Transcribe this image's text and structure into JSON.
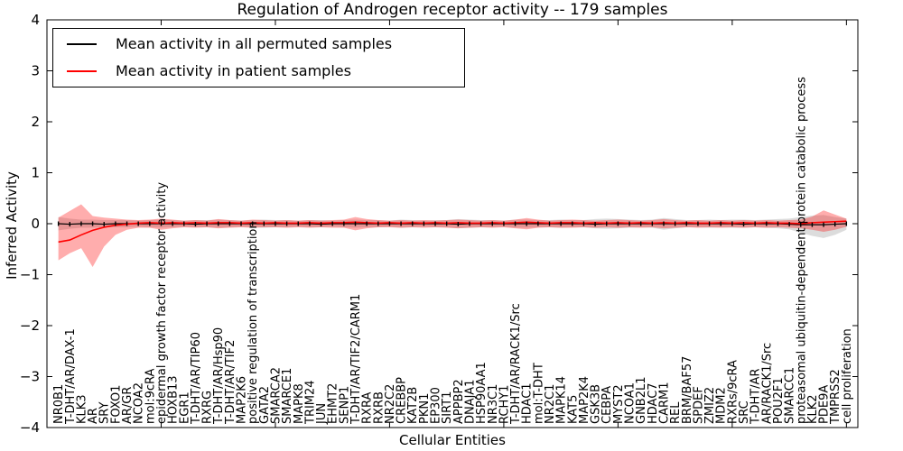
{
  "figure": {
    "title": "Regulation of Androgen receptor activity -- 179 samples",
    "xlabel": "Cellular Entities",
    "ylabel": "Inferred Activity",
    "legend": {
      "entries": [
        {
          "label": "Mean activity in all permuted samples",
          "color": "#000000"
        },
        {
          "label": "Mean activity in patient samples",
          "color": "#ff0000"
        }
      ]
    },
    "colors": {
      "permuted_line": "#000000",
      "patient_line": "#ff0000",
      "permuted_band": "rgba(128,128,128,0.28)",
      "patient_band": "rgba(255,0,0,0.32)",
      "axes": "#000000",
      "background": "#ffffff"
    }
  },
  "chart_data": {
    "type": "line",
    "title": "Regulation of Androgen receptor activity -- 179 samples",
    "xlabel": "Cellular Entities",
    "ylabel": "Inferred Activity",
    "ylim": [
      -4,
      4
    ],
    "yticks": [
      4,
      3,
      2,
      1,
      0,
      -1,
      -2,
      -3,
      -4
    ],
    "xtick_indices": [
      9,
      19,
      29,
      39,
      49,
      59,
      69
    ],
    "grid": false,
    "legend_position": "upper left",
    "categories": [
      "NR0B1",
      "T-DHT/AR/DAX-1",
      "KLK3",
      "AR",
      "SRY",
      "FOXO1",
      "AR/GR",
      "NCOA2",
      "mol:9cRA",
      "epidermal growth factor receptor activity",
      "HOXB13",
      "EGR1",
      "T-DHT/AR/TIP60",
      "RXRG",
      "T-DHT/AR/Hsp90",
      "T-DHT/AR/TIF2",
      "MAP2K6",
      "positive regulation of transcription",
      "GATA2",
      "SMARCA2",
      "SMARCE1",
      "MAPK8",
      "TRIM24",
      "JUN",
      "EHMT2",
      "SENP1",
      "T-DHT/AR/TIF2/CARM1",
      "RXRA",
      "RXRB",
      "NR2C2",
      "CREBBP",
      "KAT2B",
      "PKN1",
      "EP300",
      "SIRT1",
      "APPBP2",
      "DNAJA1",
      "HSP90AA1",
      "NR3C1",
      "RCHY1",
      "T-DHT/AR/RACK1/Src",
      "HDAC1",
      "mol:T-DHT",
      "NR2C1",
      "MAPK14",
      "KAT5",
      "MAP2K4",
      "GSK3B",
      "CEBPA",
      "MYST2",
      "NCOA1",
      "GNB2L1",
      "HDAC7",
      "CARM1",
      "REL",
      "BRM/BAF57",
      "SPDEF",
      "ZMIZ2",
      "MDM2",
      "RXRs/9cRA",
      "SRC",
      "T-DHT/AR",
      "AR/RACK1/Src",
      "POU2F1",
      "SMARCC1",
      "proteasomal ubiquitin-dependent protein catabolic process",
      "KLK2",
      "PDE9A",
      "TMPRSS2",
      "cell proliferation"
    ],
    "series": [
      {
        "name": "Mean activity in all permuted samples",
        "color": "#000000",
        "band_color": "rgba(128,128,128,0.28)",
        "values": [
          0,
          -0.01,
          0,
          0,
          -0.01,
          0,
          0,
          0,
          0,
          0,
          0,
          0,
          -0.01,
          0,
          0,
          0,
          0,
          0,
          0,
          0,
          0,
          0,
          0,
          -0.01,
          0,
          0,
          0,
          0,
          0,
          0,
          0,
          0,
          0,
          0,
          0,
          -0.01,
          0,
          0,
          0,
          0,
          0,
          0,
          0,
          0,
          0,
          0,
          0,
          -0.01,
          0,
          0,
          0,
          0,
          0,
          0,
          0,
          0,
          0,
          0,
          0,
          0,
          -0.01,
          0,
          0,
          0,
          -0.01,
          -0.02,
          -0.02,
          -0.02,
          -0.01,
          0
        ],
        "band_hi": [
          0.13,
          0.1,
          0.08,
          0.08,
          0.07,
          0.07,
          0.07,
          0.06,
          0.07,
          0.08,
          0.07,
          0.06,
          0.07,
          0.07,
          0.08,
          0.07,
          0.06,
          0.07,
          0.08,
          0.07,
          0.07,
          0.06,
          0.07,
          0.07,
          0.06,
          0.07,
          0.08,
          0.07,
          0.07,
          0.06,
          0.08,
          0.07,
          0.06,
          0.07,
          0.07,
          0.09,
          0.08,
          0.07,
          0.07,
          0.06,
          0.08,
          0.08,
          0.07,
          0.07,
          0.08,
          0.07,
          0.07,
          0.09,
          0.1,
          0.09,
          0.08,
          0.07,
          0.08,
          0.11,
          0.09,
          0.07,
          0.07,
          0.08,
          0.07,
          0.08,
          0.08,
          0.07,
          0.08,
          0.09,
          0.1,
          0.13,
          0.16,
          0.17,
          0.13,
          0.1
        ],
        "band_lo": [
          -0.13,
          -0.1,
          -0.08,
          -0.08,
          -0.07,
          -0.07,
          -0.07,
          -0.06,
          -0.07,
          -0.08,
          -0.07,
          -0.06,
          -0.07,
          -0.07,
          -0.08,
          -0.07,
          -0.06,
          -0.07,
          -0.08,
          -0.07,
          -0.07,
          -0.06,
          -0.07,
          -0.07,
          -0.06,
          -0.07,
          -0.08,
          -0.07,
          -0.07,
          -0.06,
          -0.08,
          -0.07,
          -0.06,
          -0.07,
          -0.07,
          -0.09,
          -0.08,
          -0.07,
          -0.07,
          -0.06,
          -0.08,
          -0.08,
          -0.07,
          -0.07,
          -0.08,
          -0.07,
          -0.07,
          -0.09,
          -0.1,
          -0.09,
          -0.08,
          -0.07,
          -0.08,
          -0.12,
          -0.09,
          -0.07,
          -0.07,
          -0.08,
          -0.07,
          -0.08,
          -0.08,
          -0.07,
          -0.08,
          -0.09,
          -0.11,
          -0.18,
          -0.24,
          -0.28,
          -0.22,
          -0.12
        ]
      },
      {
        "name": "Mean activity in patient samples",
        "color": "#ff0000",
        "band_color": "rgba(255,0,0,0.32)",
        "values": [
          -0.36,
          -0.32,
          -0.22,
          -0.13,
          -0.07,
          -0.03,
          -0.01,
          0.01,
          0.02,
          0.01,
          0.02,
          0.01,
          0.02,
          0.01,
          0.02,
          0.02,
          0.01,
          0.02,
          0.01,
          0.02,
          0.01,
          0.01,
          0.02,
          0.01,
          0.02,
          0.02,
          0.03,
          0.02,
          0.01,
          0.02,
          0.01,
          0.02,
          0.01,
          0.02,
          0.01,
          0.02,
          0.01,
          0.01,
          0.02,
          0.01,
          0.02,
          0.03,
          0.02,
          0.01,
          0.02,
          0.02,
          0.01,
          0.02,
          0.01,
          0.02,
          0.01,
          0.02,
          0.01,
          0.02,
          0.01,
          0.02,
          0.01,
          0.01,
          0.02,
          0.01,
          0.02,
          0.01,
          0.02,
          0.01,
          0.01,
          0.0,
          0.02,
          0.03,
          0.04,
          0.05
        ],
        "band_hi": [
          0.12,
          0.25,
          0.38,
          0.15,
          0.12,
          0.1,
          0.08,
          0.07,
          0.08,
          0.1,
          0.08,
          0.06,
          0.07,
          0.06,
          0.09,
          0.07,
          0.06,
          0.08,
          0.07,
          0.06,
          0.07,
          0.06,
          0.07,
          0.06,
          0.07,
          0.08,
          0.13,
          0.09,
          0.07,
          0.06,
          0.07,
          0.06,
          0.07,
          0.06,
          0.07,
          0.08,
          0.07,
          0.06,
          0.07,
          0.06,
          0.08,
          0.11,
          0.08,
          0.06,
          0.07,
          0.08,
          0.07,
          0.06,
          0.07,
          0.08,
          0.07,
          0.06,
          0.07,
          0.09,
          0.07,
          0.06,
          0.07,
          0.06,
          0.07,
          0.06,
          0.07,
          0.06,
          0.07,
          0.06,
          0.07,
          0.08,
          0.14,
          0.26,
          0.18,
          0.1
        ],
        "band_lo": [
          -0.72,
          -0.58,
          -0.48,
          -0.85,
          -0.45,
          -0.22,
          -0.12,
          -0.08,
          -0.08,
          -0.12,
          -0.09,
          -0.07,
          -0.08,
          -0.07,
          -0.09,
          -0.08,
          -0.07,
          -0.08,
          -0.07,
          -0.07,
          -0.08,
          -0.07,
          -0.08,
          -0.07,
          -0.08,
          -0.08,
          -0.13,
          -0.09,
          -0.07,
          -0.07,
          -0.08,
          -0.07,
          -0.08,
          -0.07,
          -0.08,
          -0.09,
          -0.08,
          -0.07,
          -0.08,
          -0.07,
          -0.09,
          -0.11,
          -0.08,
          -0.07,
          -0.08,
          -0.08,
          -0.07,
          -0.08,
          -0.07,
          -0.08,
          -0.07,
          -0.08,
          -0.07,
          -0.09,
          -0.08,
          -0.07,
          -0.08,
          -0.07,
          -0.08,
          -0.07,
          -0.08,
          -0.07,
          -0.08,
          -0.07,
          -0.08,
          -0.09,
          -0.12,
          -0.16,
          -0.12,
          -0.06
        ]
      }
    ]
  }
}
